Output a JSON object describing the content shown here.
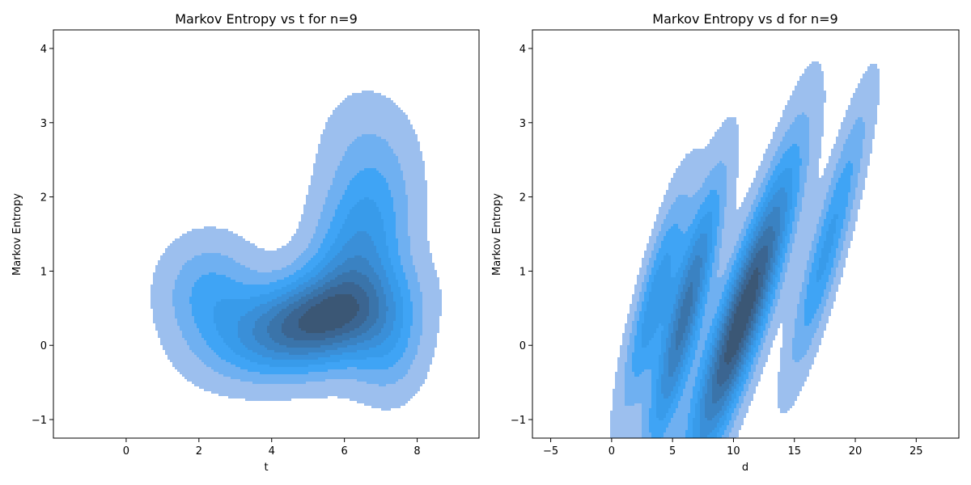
{
  "chart_data": [
    {
      "type": "kde-contour",
      "title": "Markov Entropy vs t for n=9",
      "xlabel": "t",
      "ylabel": "Markov Entropy",
      "xlim": [
        -2.0,
        9.7
      ],
      "ylim": [
        -1.25,
        4.25
      ],
      "xticks": [
        0,
        2,
        4,
        6,
        8
      ],
      "yticks": [
        -1,
        0,
        1,
        2,
        3,
        4
      ],
      "fill_color": "#1f8ff0",
      "levels": 9,
      "density_components": [
        {
          "mx": 5.0,
          "my": 0.3,
          "sx": 1.5,
          "sy": 0.45,
          "rho": 0.35,
          "w": 1.0
        },
        {
          "mx": 6.4,
          "my": 1.3,
          "sx": 0.9,
          "sy": 0.8,
          "rho": 0.3,
          "w": 0.55
        },
        {
          "mx": 2.3,
          "my": 0.7,
          "sx": 0.9,
          "sy": 0.5,
          "rho": 0.0,
          "w": 0.35
        },
        {
          "mx": 7.2,
          "my": 0.0,
          "sx": 0.7,
          "sy": 0.5,
          "rho": 0.0,
          "w": 0.3
        },
        {
          "mx": 6.5,
          "my": 2.7,
          "sx": 0.9,
          "sy": 0.6,
          "rho": 0.0,
          "w": 0.12
        }
      ]
    },
    {
      "type": "kde-contour",
      "title": "Markov Entropy vs d for n=9",
      "xlabel": "d",
      "ylabel": "Markov Entropy",
      "xlim": [
        -6.5,
        28.5
      ],
      "ylim": [
        -1.25,
        4.25
      ],
      "xticks": [
        -5,
        0,
        5,
        10,
        15,
        20,
        25
      ],
      "yticks": [
        -1,
        0,
        1,
        2,
        3,
        4
      ],
      "fill_color": "#1f8ff0",
      "levels": 9,
      "density_components": [
        {
          "mx": 10.5,
          "my": 0.3,
          "sx": 2.8,
          "sy": 1.3,
          "rho": 0.88,
          "w": 1.0
        },
        {
          "mx": 6.0,
          "my": 0.4,
          "sx": 2.0,
          "sy": 1.2,
          "rho": 0.87,
          "w": 0.75
        },
        {
          "mx": 3.5,
          "my": 0.6,
          "sx": 1.8,
          "sy": 1.0,
          "rho": 0.85,
          "w": 0.45
        },
        {
          "mx": 17.5,
          "my": 1.2,
          "sx": 2.0,
          "sy": 1.1,
          "rho": 0.88,
          "w": 0.4
        },
        {
          "mx": 14.0,
          "my": 2.0,
          "sx": 2.0,
          "sy": 1.2,
          "rho": 0.85,
          "w": 0.12
        },
        {
          "mx": 20.0,
          "my": 2.8,
          "sx": 1.5,
          "sy": 0.8,
          "rho": 0.8,
          "w": 0.08
        }
      ]
    }
  ]
}
